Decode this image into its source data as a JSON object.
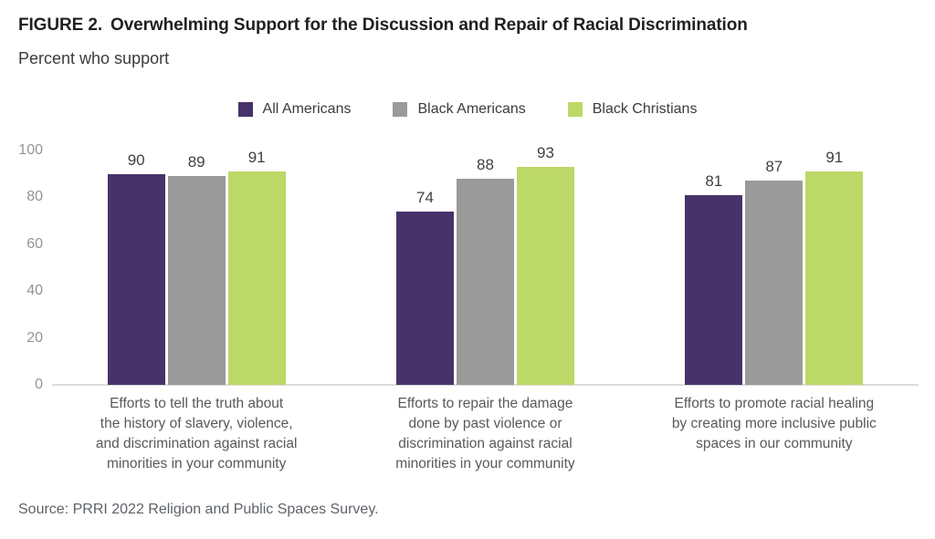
{
  "header": {
    "figure_label": "FIGURE 2.",
    "title": "Overwhelming Support for the Discussion and Repair of Racial Discrimination",
    "subtitle": "Percent who support"
  },
  "source": "Source: PRRI 2022 Religion and Public Spaces Survey.",
  "colors": {
    "all_americans": "#473369",
    "black_americans": "#9a9a9a",
    "black_christians": "#bcd866",
    "axis_line": "#dcdcdc",
    "tick_label": "#949494",
    "value_label": "#404040",
    "category_label": "#595959"
  },
  "chart_data": {
    "type": "bar",
    "title": "FIGURE 2. Overwhelming Support for the Discussion and Repair of Racial Discrimination",
    "subtitle": "Percent who support",
    "xlabel": "",
    "ylabel": "Percent who support",
    "ylim": [
      0,
      100
    ],
    "y_ticks": [
      0,
      20,
      40,
      60,
      80,
      100
    ],
    "grid": false,
    "legend_position": "top-center",
    "categories": [
      "Efforts to tell the truth about the history of slavery, violence, and discrimination against racial minorities in your community",
      "Efforts to repair the damage done by past violence or discrimination against racial minorities in your community",
      "Efforts to promote racial healing by creating more inclusive public spaces in our community"
    ],
    "categories_wrapped": [
      [
        "Efforts to tell the truth about",
        "the history of slavery, violence,",
        "and discrimination against racial",
        "minorities in your community"
      ],
      [
        "Efforts to repair the damage",
        "done by past violence or",
        "discrimination against racial",
        "minorities in your community"
      ],
      [
        "Efforts to promote racial healing",
        "by creating more inclusive public",
        "spaces in our community"
      ]
    ],
    "series": [
      {
        "name": "All Americans",
        "color": "#473369",
        "values": [
          90,
          74,
          81
        ]
      },
      {
        "name": "Black Americans",
        "color": "#9a9a9a",
        "values": [
          89,
          88,
          87
        ]
      },
      {
        "name": "Black Christians",
        "color": "#bcd866",
        "values": [
          91,
          93,
          91
        ]
      }
    ]
  }
}
